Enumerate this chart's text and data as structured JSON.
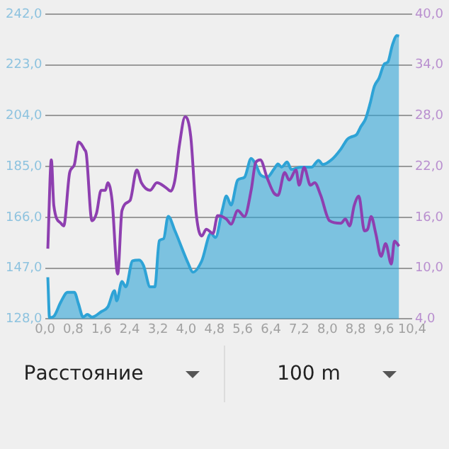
{
  "chart_data": {
    "type": "area",
    "xlim": [
      0,
      10.4
    ],
    "xticks": [
      {
        "value": 0,
        "label": "0,0"
      },
      {
        "value": 0.8,
        "label": "0,8"
      },
      {
        "value": 1.6,
        "label": "1,6"
      },
      {
        "value": 2.4,
        "label": "2,4"
      },
      {
        "value": 3.2,
        "label": "3,2"
      },
      {
        "value": 4.0,
        "label": "4,0"
      },
      {
        "value": 4.8,
        "label": "4,8"
      },
      {
        "value": 5.6,
        "label": "5,6"
      },
      {
        "value": 6.4,
        "label": "6,4"
      },
      {
        "value": 7.2,
        "label": "7,2"
      },
      {
        "value": 8.0,
        "label": "8,0"
      },
      {
        "value": 8.8,
        "label": "8,8"
      },
      {
        "value": 9.6,
        "label": "9,6"
      },
      {
        "value": 10.4,
        "label": "10,4"
      }
    ],
    "ylim": [
      128,
      242
    ],
    "yticks": [
      {
        "value": 128,
        "label": "128,0"
      },
      {
        "value": 147,
        "label": "147,0"
      },
      {
        "value": 166,
        "label": "166,0"
      },
      {
        "value": 185,
        "label": "185,0"
      },
      {
        "value": 204,
        "label": "204,0"
      },
      {
        "value": 223,
        "label": "223,0"
      },
      {
        "value": 242,
        "label": "242,0"
      }
    ],
    "y2lim": [
      4,
      40
    ],
    "y2ticks": [
      {
        "value": 4,
        "label": "4,0"
      },
      {
        "value": 10,
        "label": "10,0"
      },
      {
        "value": 16,
        "label": "16,0"
      },
      {
        "value": 22,
        "label": "22,0"
      },
      {
        "value": 28,
        "label": "28,0"
      },
      {
        "value": 34,
        "label": "34,0"
      },
      {
        "value": 40,
        "label": "40,0"
      }
    ],
    "grid": "y",
    "marker": "none",
    "series": [
      {
        "color": "#2ea3d6",
        "x": [
          0.08,
          0.13,
          0.25,
          0.45,
          0.64,
          0.83,
          0.95,
          1.08,
          1.2,
          1.33,
          1.59,
          1.78,
          1.97,
          2.03,
          2.18,
          2.29,
          2.48,
          2.67,
          2.79,
          2.98,
          3.11,
          3.24,
          3.36,
          3.49,
          3.68,
          4.06,
          4.19,
          4.44,
          4.7,
          4.83,
          5.02,
          5.14,
          5.27,
          5.46,
          5.65,
          5.84,
          5.97,
          6.1,
          6.29,
          6.48,
          6.6,
          6.7,
          6.86,
          6.98,
          7.24,
          7.55,
          7.75,
          7.87,
          8.13,
          8.38,
          8.57,
          8.7,
          8.83,
          8.95,
          9.08,
          9.21,
          9.33,
          9.46,
          9.62,
          9.71,
          9.84,
          9.97,
          10.03
        ],
        "values": [
          143.6,
          128.5,
          129,
          134.4,
          138,
          138,
          133.6,
          128.7,
          129.7,
          128.7,
          130.7,
          132.5,
          138.6,
          134.8,
          142,
          140,
          149.7,
          150,
          148,
          140,
          140,
          157.3,
          158,
          166.4,
          161,
          148.7,
          145.5,
          149.7,
          160,
          158.5,
          168.6,
          174,
          170.6,
          180,
          181,
          188,
          185.8,
          182,
          181,
          183.9,
          186,
          184.8,
          186.7,
          183.9,
          184.8,
          184.8,
          187.3,
          185.8,
          187.7,
          191.5,
          195.3,
          196.2,
          197,
          200,
          202.8,
          208.6,
          215,
          218,
          223.5,
          224,
          230.4,
          234,
          233.8
        ]
      },
      {
        "type": "line",
        "color": "#8e3fb0",
        "axis": "y2",
        "x": [
          0.08,
          0.18,
          0.25,
          0.45,
          0.53,
          0.7,
          0.83,
          0.95,
          1.12,
          1.17,
          1.33,
          1.46,
          1.59,
          1.71,
          1.78,
          1.9,
          2.06,
          2.18,
          2.41,
          2.6,
          2.73,
          2.98,
          3.17,
          3.43,
          3.56,
          3.68,
          3.81,
          3.97,
          4.13,
          4.29,
          4.44,
          4.57,
          4.76,
          4.89,
          5.14,
          5.27,
          5.46,
          5.65,
          5.84,
          5.97,
          6.1,
          6.29,
          6.48,
          6.6,
          6.79,
          6.92,
          7.11,
          7.2,
          7.34,
          7.52,
          7.64,
          7.81,
          8.06,
          8.38,
          8.51,
          8.63,
          8.76,
          8.89,
          9.05,
          9.14,
          9.24,
          9.37,
          9.52,
          9.65,
          9.81,
          9.9,
          10.03
        ],
        "values": [
          12.3,
          22.8,
          17.4,
          15.3,
          15,
          21.3,
          22.2,
          24.9,
          24,
          23.5,
          15.6,
          16.5,
          19.2,
          19.2,
          20.1,
          18,
          9.3,
          16.8,
          18,
          21.6,
          20.1,
          19.2,
          20.1,
          19.5,
          19.1,
          20.4,
          24.6,
          27.9,
          25.5,
          16.2,
          13.8,
          14.6,
          14.1,
          16.2,
          15.8,
          15.2,
          16.8,
          16.1,
          19.2,
          22.5,
          22.8,
          20.7,
          18.9,
          18.6,
          21.3,
          20.4,
          21.6,
          19.8,
          21.9,
          19.8,
          20.1,
          18.6,
          15.6,
          15.3,
          15.8,
          15,
          17.4,
          18.5,
          14.4,
          14.6,
          16.1,
          14.1,
          11.4,
          12.9,
          10.5,
          13.2,
          12.6
        ]
      }
    ],
    "annotations": [
      "Расстояние",
      "100 m"
    ]
  }
}
